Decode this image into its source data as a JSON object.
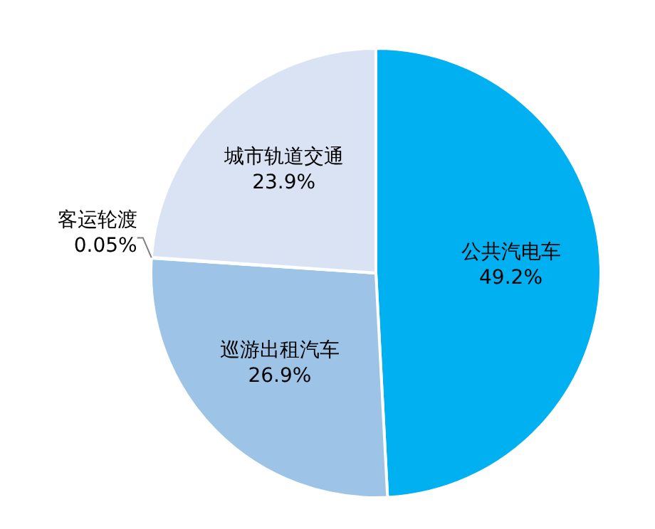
{
  "chart_data": {
    "type": "pie",
    "categories": [
      "公共汽电车",
      "巡游出租汽车",
      "客运轮渡",
      "城市轨道交通"
    ],
    "values": [
      49.2,
      26.9,
      0.05,
      23.9
    ],
    "value_labels": [
      "49.2%",
      "26.9%",
      "0.05%",
      "23.9%"
    ],
    "colors": [
      "#00b0f0",
      "#9dc3e6",
      "#a6a6a6",
      "#dae3f3"
    ],
    "legend": false
  }
}
